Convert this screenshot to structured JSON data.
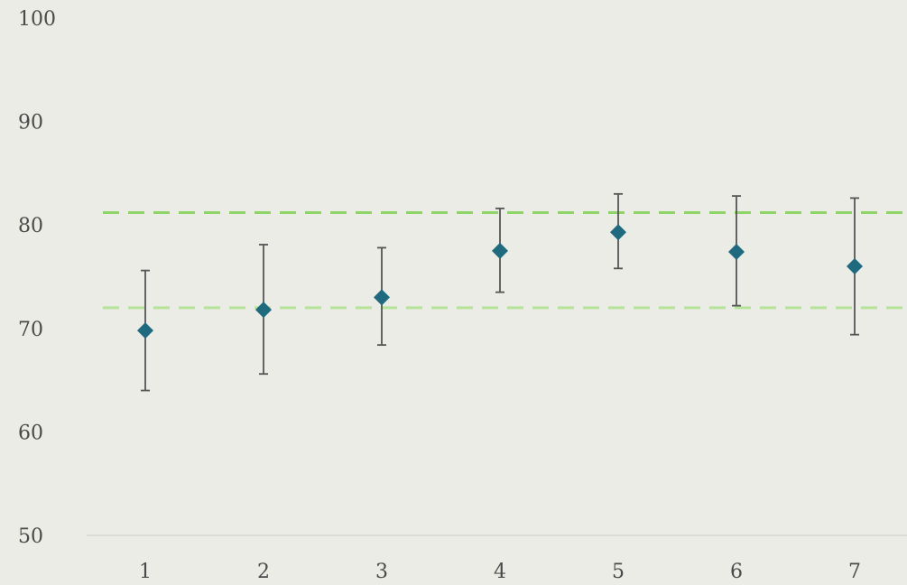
{
  "chart_data": {
    "type": "scatter",
    "x": [
      1,
      2,
      3,
      4,
      5,
      6,
      7
    ],
    "y": [
      69.8,
      71.8,
      73.0,
      77.5,
      79.3,
      77.4,
      76.0
    ],
    "error_low": [
      64.0,
      65.6,
      68.4,
      73.5,
      75.8,
      72.2,
      69.4
    ],
    "error_high": [
      75.6,
      78.1,
      77.8,
      81.6,
      83.0,
      82.8,
      82.6
    ],
    "x_tick_labels": [
      "1",
      "2",
      "3",
      "4",
      "5",
      "6",
      "7"
    ],
    "y_tick_labels": [
      "50",
      "60",
      "70",
      "80",
      "90",
      "100"
    ],
    "ylim": [
      50,
      100
    ],
    "reference_lines": [
      {
        "y": 81.2,
        "color": "#8fd468"
      },
      {
        "y": 72.0,
        "color": "#b5e39a"
      }
    ],
    "marker": "diamond",
    "marker_color": "#1f6a7e",
    "error_bar_color": "#555555",
    "title": "",
    "xlabel": "",
    "ylabel": "",
    "grid": false
  }
}
